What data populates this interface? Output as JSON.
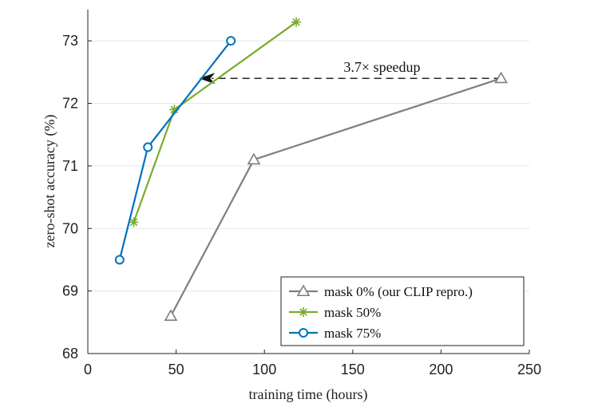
{
  "chart_data": {
    "type": "line",
    "xlabel": "training time (hours)",
    "ylabel": "zero-shot accuracy (%)",
    "xlim": [
      0,
      250
    ],
    "ylim": [
      68,
      73.5
    ],
    "xticks": [
      0,
      50,
      100,
      150,
      200,
      250
    ],
    "yticks": [
      68,
      69,
      70,
      71,
      72,
      73
    ],
    "grid": "horizontal",
    "legend_position": "bottom-right",
    "series": [
      {
        "name": "mask 0% (our CLIP repro.)",
        "color": "#7f7f7f",
        "marker": "triangle",
        "x": [
          47,
          94,
          234
        ],
        "y": [
          68.6,
          71.1,
          72.4
        ]
      },
      {
        "name": "mask 50%",
        "color": "#77ac30",
        "marker": "asterisk",
        "x": [
          26,
          49,
          118
        ],
        "y": [
          70.1,
          71.9,
          73.3
        ]
      },
      {
        "name": "mask 75%",
        "color": "#0072bd",
        "marker": "circle",
        "x": [
          18,
          34,
          81
        ],
        "y": [
          69.5,
          71.3,
          73.0
        ]
      }
    ],
    "annotations": [
      {
        "text": "3.7× speedup",
        "arrow_from": [
          234,
          72.4
        ],
        "arrow_to": [
          63,
          72.4
        ]
      }
    ]
  }
}
